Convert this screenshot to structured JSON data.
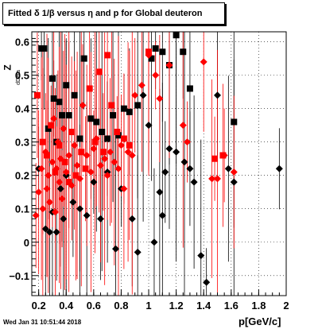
{
  "title_prefix": "Fitted ",
  "title_greek": "δ 1/β versus η and p for Global deuteron",
  "footer_date": "Wed Jan 31 10:51:44 2018",
  "xaxis_title": "p[GeV/c]",
  "yaxis_title_main": "Z",
  "yaxis_title_sub": "dDeta",
  "colors": {
    "series_black": "#000000",
    "series_red": "#ff0000",
    "grid": "#000000"
  },
  "chart_data": {
    "type": "scatter",
    "title": "Fitted δ 1/β versus η and p for Global deuteron",
    "xlabel": "p[GeV/c]",
    "ylabel": "Z dDeta",
    "xlim": [
      0.15,
      2.0
    ],
    "ylim": [
      -0.16,
      0.63
    ],
    "grid": true,
    "x_ticks": [
      "0.2",
      "0.4",
      "0.6",
      "0.8",
      "1",
      "1.2",
      "1.4",
      "1.6",
      "1.8",
      "2"
    ],
    "y_ticks": [
      "−0.1",
      "0",
      "0.1",
      "0.2",
      "0.3",
      "0.4",
      "0.5",
      "0.6"
    ],
    "series": [
      {
        "marker": "square",
        "color": "#000000",
        "x": [
          0.22,
          0.24,
          0.27,
          0.3,
          0.31,
          0.33,
          0.35,
          0.37,
          0.4,
          0.42,
          0.46,
          0.5,
          0.53,
          0.58,
          0.62,
          0.66,
          0.7,
          0.74,
          0.78,
          0.82,
          0.86,
          0.92,
          1.02,
          1.05,
          1.1,
          1.15,
          1.2,
          1.25,
          1.3,
          1.62
        ],
        "y": [
          0.58,
          0.58,
          0.34,
          0.49,
          0.43,
          0.3,
          0.42,
          0.38,
          0.47,
          0.38,
          0.44,
          0.31,
          0.55,
          0.37,
          0.36,
          0.33,
          0.31,
          0.38,
          0.32,
          0.4,
          0.39,
          0.41,
          0.55,
          0.58,
          0.57,
          0.53,
          0.62,
          0.57,
          0.46,
          0.36
        ]
      },
      {
        "marker": "diamond",
        "color": "#000000",
        "x": [
          0.2,
          0.25,
          0.28,
          0.3,
          0.33,
          0.36,
          0.38,
          0.4,
          0.45,
          0.5,
          0.55,
          0.6,
          0.65,
          0.7,
          0.76,
          0.8,
          0.88,
          0.92,
          0.96,
          1.0,
          1.04,
          1.08,
          1.1,
          1.12,
          1.15,
          1.2,
          1.26,
          1.3,
          1.33,
          1.38,
          1.42,
          1.5,
          1.58,
          1.62,
          1.95
        ],
        "y": [
          0.22,
          0.04,
          0.03,
          0.09,
          0.03,
          0.16,
          0.07,
          0.2,
          0.12,
          0.1,
          0.08,
          0.18,
          0.07,
          0.21,
          -0.02,
          0.16,
          0.07,
          -0.03,
          0.44,
          0.35,
          0.0,
          0.15,
          0.08,
          0.21,
          0.28,
          0.27,
          0.24,
          0.22,
          0.18,
          -0.04,
          -0.12,
          0.44,
          0.22,
          0.18,
          0.22
        ]
      },
      {
        "marker": "diamond",
        "color": "#ff0000",
        "x": [
          0.18,
          0.2,
          0.22,
          0.23,
          0.25,
          0.26,
          0.27,
          0.28,
          0.3,
          0.31,
          0.32,
          0.33,
          0.34,
          0.35,
          0.36,
          0.37,
          0.38,
          0.4,
          0.42,
          0.44,
          0.46,
          0.48,
          0.5,
          0.52,
          0.55,
          0.58,
          0.6,
          0.62,
          0.65,
          0.68,
          0.7,
          0.72,
          0.75,
          0.78,
          0.8,
          0.82,
          0.85,
          0.88,
          0.9,
          0.95,
          1.0,
          1.05,
          1.08,
          1.15,
          1.25,
          1.28,
          1.4,
          1.46,
          1.5,
          1.55,
          1.62
        ],
        "y": [
          0.08,
          0.15,
          0.22,
          0.1,
          0.27,
          0.16,
          0.2,
          0.12,
          0.24,
          0.37,
          0.09,
          0.22,
          0.3,
          0.18,
          0.25,
          0.13,
          0.34,
          0.21,
          0.26,
          0.17,
          0.29,
          0.23,
          0.19,
          0.41,
          0.26,
          0.21,
          0.28,
          0.31,
          0.23,
          0.25,
          0.2,
          0.27,
          0.24,
          0.22,
          0.29,
          0.16,
          0.27,
          0.26,
          0.44,
          0.47,
          0.56,
          0.5,
          0.43,
          0.53,
          0.35,
          0.3,
          0.54,
          0.19,
          0.19,
          0.26,
          0.21
        ]
      },
      {
        "marker": "square",
        "color": "#ff0000",
        "x": [
          0.19,
          0.23,
          0.26,
          0.29,
          0.32,
          0.35,
          0.39,
          0.42,
          0.44,
          0.47,
          0.51,
          0.54,
          0.57,
          0.61,
          0.64,
          0.67,
          0.7,
          0.73,
          0.77,
          0.82,
          0.86,
          1.0,
          1.48,
          1.54
        ],
        "y": [
          0.44,
          0.3,
          0.26,
          0.35,
          0.21,
          0.29,
          0.24,
          0.18,
          0.33,
          0.2,
          0.27,
          0.22,
          0.46,
          0.3,
          0.51,
          0.27,
          0.56,
          0.41,
          0.33,
          0.31,
          0.29,
          0.57,
          0.25,
          0.26
        ]
      }
    ]
  }
}
